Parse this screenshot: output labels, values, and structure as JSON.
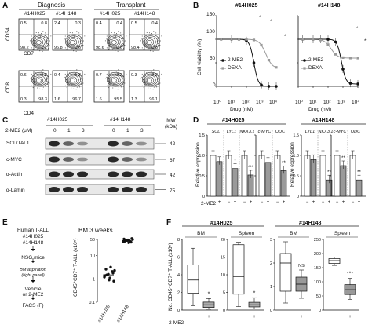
{
  "panels": {
    "A": "A",
    "B": "B",
    "C": "C",
    "D": "D",
    "E": "E",
    "F": "F"
  },
  "panelA": {
    "group_diagnosis": "Diagnosis",
    "group_transplant": "Transplant",
    "samples": [
      "#14H025",
      "#14H148",
      "#14H025",
      "#14H148"
    ],
    "row1_ylabel": "CD34",
    "row1_xlabel": "CD7",
    "row2_ylabel": "CD8",
    "row2_xlabel": "CD4",
    "row1_quadrants": [
      [
        "0.5",
        "0.8",
        "98.2",
        "1.2"
      ],
      [
        "2.4",
        "0.3",
        "96.8",
        "0.6"
      ],
      [
        "0.4",
        "0.4",
        "98.6",
        "0.6"
      ],
      [
        "0.5",
        "0.4",
        "98.4",
        "0.8"
      ]
    ],
    "row2_quadrants": [
      [
        "0.6",
        "0.8",
        "0.3",
        "98.3"
      ],
      [
        "0.4",
        "1.3",
        "1.6",
        "96.7"
      ],
      [
        "0.7",
        "2.2",
        "1.6",
        "95.5"
      ],
      [
        "0.3",
        "2.2",
        "1.3",
        "96.1"
      ]
    ]
  },
  "panelB": {
    "titles": [
      "#14H025",
      "#14H148"
    ],
    "ylabel": "Cell viability (%)",
    "xlabel": "Drug (nM)",
    "legend": [
      "2-ME2",
      "DEXA"
    ],
    "yticks": [
      "150",
      "100",
      "50",
      "0"
    ],
    "xticks": [
      "10⁰",
      "10¹",
      "10²",
      "10³",
      "10⁴"
    ],
    "stars": [
      "*",
      "*",
      "*",
      "*",
      "*"
    ]
  },
  "panelC": {
    "samples": [
      "#14H025",
      "#14H148"
    ],
    "drug_label": "2-ME2 (μM)",
    "doses": [
      "0",
      "1",
      "3",
      "0",
      "1",
      "3"
    ],
    "mw_label": "MW (kDa)",
    "rows": [
      {
        "label": "SCL/TAL1",
        "mw": "42"
      },
      {
        "label": "c-MYC",
        "mw": "67"
      },
      {
        "label": "α-Actin",
        "mw": "42"
      },
      {
        "label": "α-Lamin",
        "mw": "75"
      }
    ]
  },
  "panelD": {
    "titles": [
      "#14H025",
      "#14H148"
    ],
    "ylabel": "Relative expression",
    "genes": [
      "SCL",
      "LYL1",
      "NKX3.1",
      "c-MYC",
      "ODC"
    ],
    "yticks": [
      "1.5",
      "1.0",
      "0.5",
      "0"
    ],
    "treat_label": "2-ME2",
    "signs": [
      "−",
      "+"
    ],
    "stars": [
      "*",
      "***",
      "***",
      "***",
      "**",
      "**",
      "**",
      "**"
    ]
  },
  "panelE": {
    "steps": [
      "Human T-ALL",
      "#14H025",
      "#14H148",
      "NSG mice",
      "BM aspiration",
      "(right panel)",
      "Vehicle",
      "or 2-ME2",
      "FACS (F)"
    ],
    "title": "BM 3 weeks",
    "ylabel": "CD45⁺CD7⁺ T-ALL (x10⁵)",
    "yticks": [
      "50",
      "10",
      "1",
      "0.1"
    ],
    "xcats": [
      "#14H025",
      "#14H148"
    ]
  },
  "panelF": {
    "titles": [
      "#14H025",
      "#14H148"
    ],
    "subplots": [
      "BM",
      "Spleen",
      "BM",
      "Spleen"
    ],
    "ylabel": "No. CD45⁺CD7⁺ T-ALL (x10⁵)",
    "treat_label": "2-ME2",
    "signs": [
      "−",
      "+"
    ],
    "ann": [
      "*",
      "*",
      "NS",
      "***"
    ],
    "yticks_a": [
      "8",
      "6",
      "4",
      "2",
      "0"
    ],
    "yticks_b": [
      "20",
      "15",
      "10",
      "5",
      "0"
    ],
    "yticks_c": [
      "3",
      "2",
      "1",
      "0"
    ],
    "yticks_d": [
      "250",
      "200",
      "150",
      "100",
      "50",
      "0"
    ]
  }
}
